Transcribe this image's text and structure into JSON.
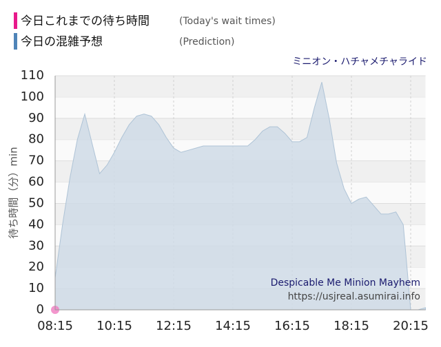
{
  "chart_data": {
    "type": "area",
    "subtitle": "ミニオン・ハチャメチャライド",
    "ylabel": "待ち時間（分）min",
    "annotations": [
      "Despicable Me Minion Mayhem",
      "https://usjreal.asumirai.info"
    ],
    "x": [
      "08:15",
      "08:30",
      "08:45",
      "09:00",
      "09:15",
      "09:30",
      "09:45",
      "10:00",
      "10:15",
      "10:30",
      "10:45",
      "11:00",
      "11:15",
      "11:30",
      "11:45",
      "12:00",
      "12:15",
      "12:30",
      "12:45",
      "13:00",
      "13:15",
      "13:30",
      "13:45",
      "14:00",
      "14:15",
      "14:30",
      "14:45",
      "15:00",
      "15:15",
      "15:30",
      "15:45",
      "16:00",
      "16:15",
      "16:30",
      "16:45",
      "17:00",
      "17:15",
      "17:30",
      "17:45",
      "18:00",
      "18:15",
      "18:30",
      "18:45",
      "19:00",
      "19:15",
      "19:30",
      "19:45",
      "20:00",
      "20:15",
      "20:30",
      "20:45"
    ],
    "series": [
      {
        "name": "今日これまでの待ち時間",
        "note": "(Today's wait times)",
        "color": "#e8198b",
        "x": [
          "08:15"
        ],
        "values": [
          0
        ]
      },
      {
        "name": "今日の混雑予想",
        "note": "(Prediction)",
        "color": "#4f84b8",
        "values": [
          15,
          40,
          62,
          80,
          92,
          78,
          64,
          68,
          74,
          81,
          87,
          91,
          92,
          91,
          87,
          81,
          76,
          74,
          75,
          76,
          77,
          77,
          77,
          77,
          77,
          77,
          77,
          80,
          84,
          86,
          86,
          83,
          79,
          79,
          81,
          95,
          107,
          90,
          69,
          57,
          50,
          52,
          53,
          49,
          45,
          45,
          46,
          40,
          0,
          0,
          1
        ]
      }
    ],
    "xlim": [
      "08:15",
      "20:45"
    ],
    "xticks": [
      "08:15",
      "10:15",
      "12:15",
      "14:15",
      "16:15",
      "18:15",
      "20:15"
    ],
    "ylim": [
      0,
      110
    ],
    "yticks": [
      0,
      10,
      20,
      30,
      40,
      50,
      60,
      70,
      80,
      90,
      100,
      110
    ],
    "grid": true
  }
}
